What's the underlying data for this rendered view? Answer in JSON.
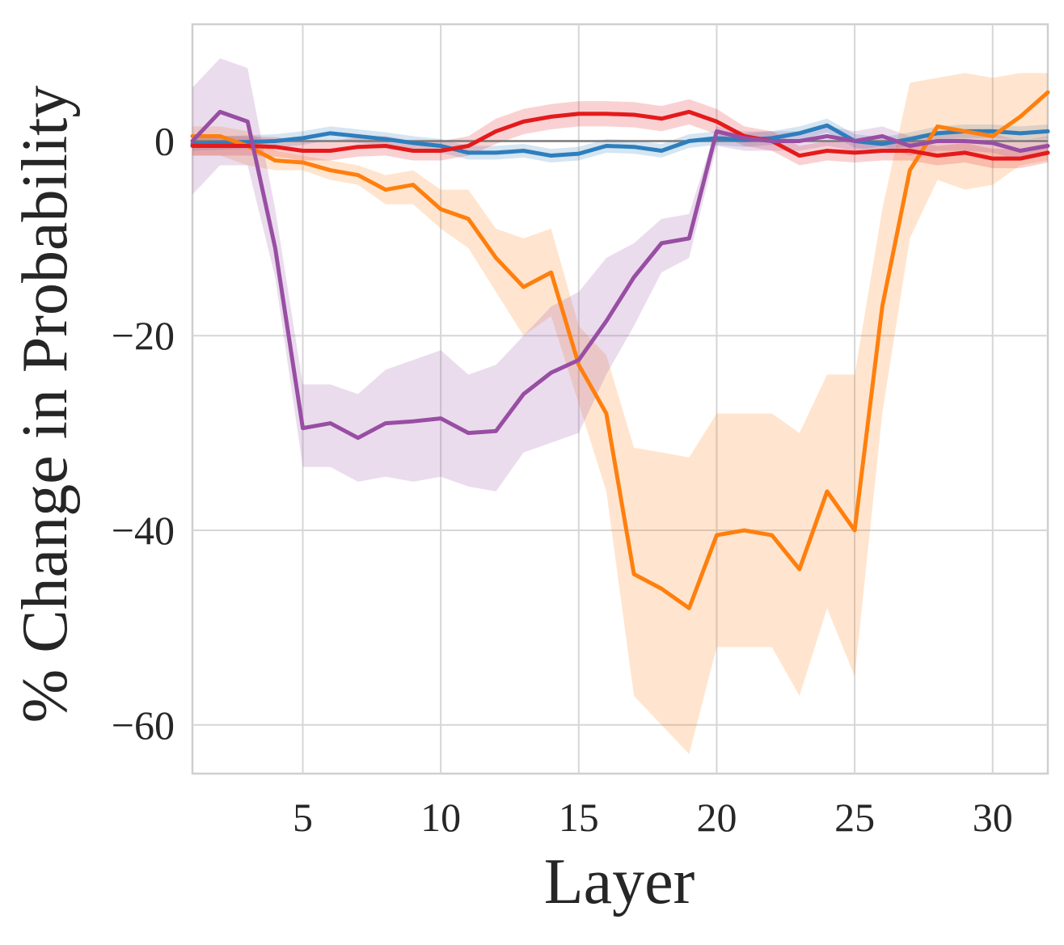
{
  "chart_data": {
    "type": "line",
    "title": "",
    "xlabel": "Layer",
    "ylabel": "% Change in Probability",
    "xlim": [
      1,
      32
    ],
    "ylim": [
      -65,
      12
    ],
    "xticks": [
      5,
      10,
      15,
      20,
      25,
      30
    ],
    "yticks": [
      0,
      -20,
      -40,
      -60
    ],
    "ytick_labels": [
      "0",
      "−20",
      "−40",
      "−60"
    ],
    "grid": true,
    "reference_line": 0,
    "x": [
      1,
      2,
      3,
      4,
      5,
      6,
      7,
      8,
      9,
      10,
      11,
      12,
      13,
      14,
      15,
      16,
      17,
      18,
      19,
      20,
      21,
      22,
      23,
      24,
      25,
      26,
      27,
      28,
      29,
      30,
      31,
      32
    ],
    "series": [
      {
        "name": "blue",
        "color": "#2e7ebc",
        "values": [
          -0.3,
          -0.2,
          -0.1,
          0.0,
          0.3,
          0.8,
          0.5,
          0.2,
          -0.2,
          -0.5,
          -1.2,
          -1.2,
          -1.0,
          -1.5,
          -1.3,
          -0.5,
          -0.6,
          -1.0,
          0.0,
          0.3,
          0.1,
          0.3,
          0.8,
          1.6,
          0.0,
          -0.3,
          0.2,
          0.8,
          1.0,
          1.0,
          0.8,
          1.0
        ],
        "lower": [
          -1.0,
          -0.9,
          -0.8,
          -0.7,
          -0.4,
          0.1,
          -0.2,
          -0.5,
          -0.9,
          -1.2,
          -1.9,
          -1.9,
          -1.7,
          -2.2,
          -2.0,
          -1.2,
          -1.3,
          -1.7,
          -0.7,
          -0.4,
          -0.6,
          -0.4,
          0.1,
          0.9,
          -0.7,
          -1.0,
          -0.5,
          0.1,
          0.3,
          0.3,
          0.1,
          0.3
        ],
        "upper": [
          0.4,
          0.5,
          0.6,
          0.7,
          1.0,
          1.5,
          1.2,
          0.9,
          0.5,
          0.2,
          -0.5,
          -0.5,
          -0.3,
          -0.8,
          -0.6,
          0.2,
          0.1,
          -0.3,
          0.7,
          1.0,
          0.8,
          1.0,
          1.5,
          2.3,
          0.7,
          0.4,
          0.9,
          1.5,
          1.7,
          1.7,
          1.5,
          1.7
        ]
      },
      {
        "name": "orange",
        "color": "#ff7f0e",
        "values": [
          0.5,
          0.5,
          -0.5,
          -2.0,
          -2.2,
          -3.0,
          -3.5,
          -5.0,
          -4.5,
          -7.0,
          -8.0,
          -12.0,
          -15.0,
          -13.5,
          -23.0,
          -28.0,
          -44.5,
          -46.0,
          -48.0,
          -40.5,
          -40.0,
          -40.5,
          -44.0,
          -36.0,
          -40.0,
          -17.0,
          -3.0,
          1.5,
          1.0,
          0.5,
          2.5,
          5.0
        ],
        "lower": [
          -1.5,
          -1.5,
          -2.5,
          -3.0,
          -3.0,
          -4.0,
          -4.5,
          -6.5,
          -6.5,
          -9.0,
          -11.0,
          -15.5,
          -20.0,
          -18.0,
          -27.0,
          -36.0,
          -57.0,
          -60.0,
          -63.0,
          -52.0,
          -52.0,
          -52.0,
          -57.0,
          -48.0,
          -55.0,
          -28.0,
          -10.0,
          -4.0,
          -5.0,
          -4.5,
          -2.5,
          -2.0
        ],
        "upper": [
          1.5,
          1.5,
          1.0,
          -1.0,
          -1.5,
          -2.0,
          -2.5,
          -3.5,
          -3.0,
          -5.0,
          -5.0,
          -9.0,
          -10.0,
          -9.0,
          -19.0,
          -22.0,
          -31.5,
          -32.0,
          -32.5,
          -28.0,
          -28.0,
          -28.0,
          -30.0,
          -24.0,
          -24.0,
          -7.0,
          6.0,
          6.5,
          7.0,
          6.5,
          7.0,
          7.0
        ]
      },
      {
        "name": "red",
        "color": "#e41a1c",
        "values": [
          -0.5,
          -0.5,
          -0.5,
          -0.6,
          -1.0,
          -1.0,
          -0.6,
          -0.5,
          -1.0,
          -1.0,
          -0.5,
          1.0,
          2.0,
          2.5,
          2.8,
          2.8,
          2.7,
          2.3,
          3.0,
          2.0,
          0.5,
          0.0,
          -1.5,
          -1.0,
          -1.2,
          -1.0,
          -1.0,
          -1.5,
          -1.2,
          -1.8,
          -1.8,
          -1.2
        ],
        "lower": [
          -1.5,
          -1.5,
          -1.5,
          -1.6,
          -2.0,
          -2.0,
          -1.6,
          -1.5,
          -2.0,
          -2.0,
          -1.5,
          -0.3,
          0.7,
          1.2,
          1.5,
          1.5,
          1.4,
          1.0,
          1.7,
          0.7,
          -0.5,
          -1.0,
          -2.5,
          -2.0,
          -2.2,
          -2.0,
          -2.0,
          -2.5,
          -2.2,
          -2.8,
          -2.8,
          -2.2
        ],
        "upper": [
          0.5,
          0.5,
          0.5,
          0.4,
          0.0,
          0.0,
          0.4,
          0.5,
          0.0,
          0.0,
          0.5,
          2.3,
          3.3,
          3.8,
          4.1,
          4.1,
          4.0,
          3.6,
          4.3,
          3.3,
          1.5,
          1.0,
          -0.5,
          0.0,
          -0.2,
          0.0,
          0.0,
          -0.5,
          -0.2,
          -0.8,
          -0.8,
          -0.2
        ]
      },
      {
        "name": "purple",
        "color": "#984ea3",
        "values": [
          0.0,
          3.0,
          2.0,
          -11.0,
          -29.5,
          -29.0,
          -30.5,
          -29.0,
          -28.8,
          -28.5,
          -30.0,
          -29.8,
          -26.0,
          -23.8,
          -22.5,
          -18.5,
          -14.0,
          -10.5,
          -10.0,
          1.0,
          0.3,
          0.0,
          0.0,
          0.5,
          0.0,
          0.5,
          -0.5,
          0.0,
          0.0,
          -0.2,
          -1.0,
          -0.5
        ],
        "lower": [
          -5.5,
          -2.5,
          -2.5,
          -14.0,
          -33.5,
          -33.5,
          -35.0,
          -34.5,
          -35.0,
          -34.5,
          -35.5,
          -36.0,
          -32.0,
          -31.0,
          -30.0,
          -24.0,
          -19.0,
          -13.5,
          -12.0,
          -0.5,
          -1.0,
          -1.0,
          -1.0,
          -0.5,
          -1.0,
          -0.5,
          -1.5,
          -1.0,
          -1.0,
          -1.2,
          -2.0,
          -1.5
        ],
        "upper": [
          5.5,
          8.5,
          7.5,
          -7.0,
          -25.0,
          -25.0,
          -26.0,
          -23.5,
          -22.5,
          -21.5,
          -24.0,
          -23.0,
          -20.0,
          -17.0,
          -15.5,
          -12.0,
          -10.5,
          -8.0,
          -7.5,
          1.5,
          1.0,
          1.0,
          1.0,
          1.5,
          1.0,
          1.5,
          0.5,
          1.0,
          1.0,
          0.8,
          0.0,
          0.5
        ]
      }
    ]
  }
}
